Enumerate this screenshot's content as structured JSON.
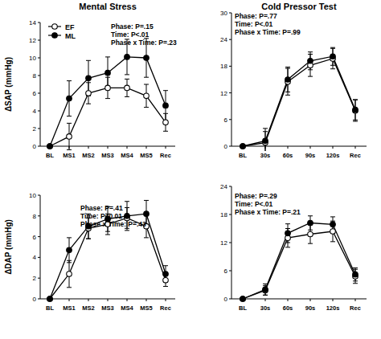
{
  "chart_data": [
    {
      "type": "line",
      "title": "Mental Stress",
      "y_label": "ΔSAP (mmHg)",
      "legend": "upper left",
      "categories": [
        "BL",
        "MS1",
        "MS2",
        "MS3",
        "MS4",
        "MS5",
        "Rec"
      ],
      "ylim": [
        0,
        14
      ],
      "yticks": [
        0,
        2,
        4,
        6,
        8,
        10,
        12,
        14
      ],
      "annotations": [
        "Phase: P=.15",
        "Time: P<.01",
        "Phase x Time: P=.23"
      ],
      "series": [
        {
          "name": "EF",
          "color": "#000000",
          "marker": "open_circle",
          "values": [
            0,
            1.1,
            6.0,
            6.6,
            6.6,
            5.7,
            2.7
          ],
          "errors": [
            0,
            1.5,
            1.2,
            1.2,
            1.0,
            1.3,
            1.0
          ]
        },
        {
          "name": "ML",
          "color": "#000000",
          "marker": "filled_circle",
          "values": [
            0,
            5.4,
            7.7,
            8.3,
            10.1,
            10.0,
            4.6
          ],
          "errors": [
            0,
            2.0,
            2.0,
            1.8,
            2.0,
            2.2,
            1.7
          ]
        }
      ]
    },
    {
      "type": "line",
      "title": "Cold Pressor Test",
      "categories": [
        "BL",
        "30s",
        "60s",
        "90s",
        "120s",
        "Rec"
      ],
      "ylim": [
        0,
        30
      ],
      "yticks": [
        0,
        6,
        12,
        18,
        24,
        30
      ],
      "annotations": [
        "Phase: P=.77",
        "Time: P<.01",
        "Phase x Time: P=.99"
      ],
      "series": [
        {
          "name": "EF",
          "color": "#000000",
          "marker": "open_circle",
          "values": [
            0,
            0.8,
            14.5,
            18.2,
            19.7,
            8.0
          ],
          "errors": [
            0,
            2.5,
            3.0,
            2.5,
            2.3,
            2.4
          ]
        },
        {
          "name": "ML",
          "color": "#000000",
          "marker": "filled_circle",
          "values": [
            0,
            1.2,
            15.0,
            19.2,
            20.2,
            8.2
          ],
          "errors": [
            0,
            2.8,
            2.8,
            2.0,
            2.0,
            2.3
          ]
        }
      ]
    },
    {
      "type": "line",
      "y_label": "ΔDAP (mmHg)",
      "categories": [
        "BL",
        "MS1",
        "MS2",
        "MS3",
        "MS4",
        "MS5",
        "Rec"
      ],
      "ylim": [
        0,
        10
      ],
      "yticks": [
        0,
        2,
        4,
        6,
        8,
        10
      ],
      "annotations": [
        "Phase: P=.41",
        "Time: P<0.01",
        "Phase x Time: P=.43"
      ],
      "series": [
        {
          "name": "EF",
          "color": "#000000",
          "marker": "open_circle",
          "values": [
            0,
            2.4,
            6.8,
            7.2,
            7.8,
            7.0,
            1.8
          ],
          "errors": [
            0,
            1.3,
            1.0,
            1.0,
            1.0,
            1.1,
            0.6
          ]
        },
        {
          "name": "ML",
          "color": "#000000",
          "marker": "filled_circle",
          "values": [
            0,
            4.7,
            7.0,
            7.7,
            8.0,
            8.2,
            2.4
          ],
          "errors": [
            0,
            1.2,
            1.2,
            1.2,
            1.4,
            1.3,
            0.8
          ]
        }
      ]
    },
    {
      "type": "line",
      "categories": [
        "BL",
        "30s",
        "60s",
        "90s",
        "120s",
        "Rec"
      ],
      "ylim": [
        0,
        24
      ],
      "yticks": [
        0,
        6,
        12,
        18,
        24
      ],
      "annotations": [
        "Phase: P=.29",
        "Time: P<.01",
        "Phase x Time: P=.21"
      ],
      "series": [
        {
          "name": "EF",
          "color": "#000000",
          "marker": "open_circle",
          "values": [
            0,
            1.8,
            13.0,
            13.8,
            14.4,
            4.8
          ],
          "errors": [
            0,
            1.0,
            2.0,
            2.0,
            2.2,
            1.5
          ]
        },
        {
          "name": "ML",
          "color": "#000000",
          "marker": "filled_circle",
          "values": [
            0,
            2.0,
            14.0,
            16.2,
            15.9,
            5.2
          ],
          "errors": [
            0,
            1.2,
            2.0,
            1.5,
            1.6,
            1.4
          ]
        }
      ]
    }
  ]
}
